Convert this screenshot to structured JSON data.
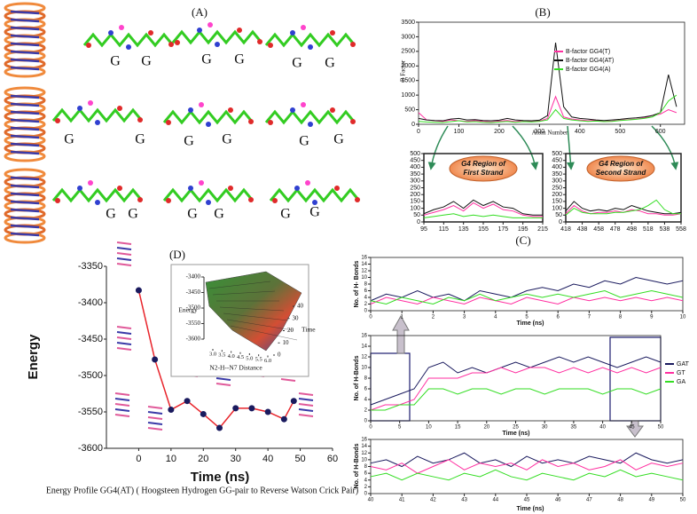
{
  "panel_labels": [
    "(A)",
    "(B)",
    "(C)",
    "(D)"
  ],
  "g_labels": [
    "G",
    "G",
    "G",
    "G",
    "G",
    "G",
    "G",
    "G",
    "G",
    "G",
    "G",
    "G",
    "G",
    "G",
    "G",
    "G",
    "G",
    "G"
  ],
  "caption": "Energy Profile GG4(AT) ( Hoogsteen Hydrogen GG-pair to Reverse Watson Crick Pair)",
  "chart_data": [
    {
      "type": "line",
      "xlabel": "Atom Number",
      "ylabel": "B Factor",
      "legend": "upper right",
      "x": [
        0,
        20,
        40,
        60,
        80,
        100,
        120,
        140,
        160,
        180,
        200,
        220,
        240,
        260,
        280,
        300,
        320,
        340,
        360,
        380,
        400,
        420,
        440,
        460,
        480,
        500,
        520,
        540,
        560,
        580,
        600,
        620,
        640
      ],
      "series": [
        {
          "name": "B-factor GG4(T)",
          "color": "#ff2fa0",
          "values": [
            400,
            150,
            120,
            100,
            150,
            120,
            100,
            130,
            100,
            80,
            110,
            130,
            90,
            120,
            100,
            110,
            200,
            950,
            250,
            180,
            150,
            120,
            140,
            100,
            110,
            140,
            160,
            180,
            220,
            300,
            350,
            500,
            400
          ]
        },
        {
          "name": "B-factor GG4(AT)",
          "color": "#111111",
          "values": [
            200,
            150,
            130,
            120,
            180,
            200,
            150,
            160,
            130,
            120,
            140,
            200,
            150,
            130,
            120,
            140,
            300,
            2800,
            600,
            250,
            200,
            180,
            150,
            130,
            150,
            170,
            200,
            220,
            250,
            300,
            400,
            1700,
            600
          ]
        },
        {
          "name": "B-factor GG4(A)",
          "color": "#33dd22",
          "values": [
            100,
            80,
            70,
            60,
            90,
            120,
            80,
            90,
            70,
            60,
            80,
            100,
            70,
            90,
            80,
            100,
            150,
            500,
            200,
            150,
            120,
            100,
            110,
            90,
            100,
            130,
            150,
            170,
            200,
            250,
            400,
            800,
            1000
          ]
        }
      ],
      "xlim": [
        0,
        660
      ],
      "ylim": [
        0,
        3500
      ],
      "xticks": [
        0,
        100,
        200,
        300,
        400,
        500,
        600
      ],
      "yticks": [
        0,
        500,
        1000,
        1500,
        2000,
        2500,
        3000,
        3500
      ]
    },
    {
      "type": "line",
      "annotation": [
        "G4 Region of",
        "First Strand"
      ],
      "x": [
        95,
        105,
        115,
        125,
        135,
        145,
        155,
        165,
        175,
        185,
        195,
        205,
        215
      ],
      "series": [
        {
          "color": "#ff2fa0",
          "values": [
            50,
            70,
            90,
            120,
            80,
            140,
            100,
            130,
            90,
            80,
            50,
            40,
            40
          ]
        },
        {
          "color": "#111111",
          "values": [
            60,
            90,
            110,
            150,
            100,
            160,
            120,
            150,
            110,
            100,
            60,
            50,
            50
          ]
        },
        {
          "color": "#33dd22",
          "values": [
            30,
            40,
            50,
            60,
            40,
            50,
            40,
            50,
            40,
            30,
            30,
            30,
            30
          ]
        }
      ],
      "xlim": [
        95,
        215
      ],
      "ylim": [
        0,
        500
      ],
      "xticks": [
        95,
        115,
        135,
        155,
        175,
        195,
        215
      ],
      "yticks": [
        0,
        50,
        100,
        150,
        200,
        250,
        300,
        350,
        400,
        450,
        500
      ]
    },
    {
      "type": "line",
      "annotation": [
        "G4 Region of",
        "Second Strand"
      ],
      "x": [
        418,
        428,
        438,
        448,
        458,
        468,
        478,
        488,
        498,
        508,
        518,
        528,
        538,
        548,
        558
      ],
      "series": [
        {
          "color": "#ff2fa0",
          "values": [
            60,
            120,
            80,
            60,
            70,
            70,
            80,
            70,
            90,
            80,
            60,
            60,
            50,
            50,
            60
          ]
        },
        {
          "color": "#111111",
          "values": [
            80,
            150,
            100,
            80,
            90,
            80,
            100,
            90,
            120,
            100,
            80,
            70,
            60,
            60,
            70
          ]
        },
        {
          "color": "#33dd22",
          "values": [
            50,
            100,
            70,
            60,
            60,
            60,
            70,
            70,
            80,
            90,
            120,
            160,
            90,
            60,
            60
          ]
        }
      ],
      "xlim": [
        418,
        558
      ],
      "ylim": [
        0,
        500
      ],
      "xticks": [
        418,
        438,
        458,
        478,
        498,
        518,
        538,
        558
      ],
      "yticks": [
        0,
        50,
        100,
        150,
        200,
        250,
        300,
        350,
        400,
        450,
        500
      ]
    },
    {
      "type": "line",
      "xlabel": "Time (ns)",
      "ylabel": "No. of H- Bonds",
      "x": [
        0,
        0.5,
        1,
        1.5,
        2,
        2.5,
        3,
        3.5,
        4,
        4.5,
        5,
        5.5,
        6,
        6.5,
        7,
        7.5,
        8,
        8.5,
        9,
        9.5,
        10
      ],
      "series": [
        {
          "color": "#1a1a5e",
          "values": [
            3,
            5,
            4,
            6,
            4,
            5,
            3,
            6,
            5,
            4,
            6,
            7,
            6,
            8,
            7,
            9,
            8,
            10,
            9,
            8,
            9
          ]
        },
        {
          "color": "#ff2fa0",
          "values": [
            2,
            4,
            3,
            2,
            4,
            3,
            2,
            4,
            3,
            2,
            4,
            3,
            2,
            4,
            3,
            4,
            3,
            4,
            3,
            4,
            3
          ]
        },
        {
          "color": "#33dd22",
          "values": [
            3,
            2,
            4,
            3,
            2,
            4,
            3,
            5,
            3,
            4,
            5,
            4,
            5,
            4,
            5,
            6,
            4,
            5,
            6,
            5,
            4
          ]
        }
      ],
      "xlim": [
        0,
        10
      ],
      "ylim": [
        0,
        16
      ],
      "xticks": [
        0,
        1,
        2,
        3,
        4,
        5,
        6,
        7,
        8,
        9,
        10
      ],
      "yticks": [
        0,
        2,
        4,
        6,
        8,
        10,
        12,
        14,
        16
      ]
    },
    {
      "type": "line",
      "xlabel": "Time (ns)",
      "ylabel": "No. of H-Bonds",
      "legend": "right",
      "x": [
        0,
        2.5,
        5,
        7.5,
        10,
        12.5,
        15,
        17.5,
        20,
        22.5,
        25,
        27.5,
        30,
        32.5,
        35,
        37.5,
        40,
        42.5,
        45,
        47.5,
        50
      ],
      "series": [
        {
          "name": "GAT",
          "color": "#1a1a5e",
          "values": [
            3,
            4,
            5,
            6,
            10,
            11,
            9,
            10,
            9,
            10,
            11,
            10,
            11,
            12,
            11,
            12,
            11,
            10,
            11,
            12,
            11
          ]
        },
        {
          "name": "GT",
          "color": "#ff2fa0",
          "values": [
            2,
            3,
            3,
            4,
            8,
            8,
            8,
            9,
            9,
            10,
            9,
            10,
            10,
            9,
            10,
            9,
            10,
            9,
            10,
            9,
            10
          ]
        },
        {
          "name": "GA",
          "color": "#33dd22",
          "values": [
            2,
            2,
            3,
            3,
            6,
            6,
            5,
            6,
            6,
            5,
            6,
            6,
            5,
            6,
            6,
            6,
            5,
            6,
            6,
            5,
            6
          ]
        }
      ],
      "xlim": [
        0,
        50
      ],
      "ylim": [
        0,
        16
      ],
      "xticks": [
        0,
        5,
        10,
        15,
        20,
        25,
        30,
        35,
        40,
        45,
        50
      ],
      "yticks": [
        0,
        2,
        4,
        6,
        8,
        10,
        12,
        14,
        16
      ]
    },
    {
      "type": "line",
      "xlabel": "Time (ns)",
      "ylabel": "No. of H-Bonds",
      "x": [
        40,
        40.5,
        41,
        41.5,
        42,
        42.5,
        43,
        43.5,
        44,
        44.5,
        45,
        45.5,
        46,
        46.5,
        47,
        47.5,
        48,
        48.5,
        49,
        49.5,
        50
      ],
      "series": [
        {
          "color": "#1a1a5e",
          "values": [
            9,
            10,
            8,
            11,
            9,
            10,
            12,
            9,
            10,
            8,
            11,
            9,
            10,
            9,
            11,
            10,
            9,
            12,
            10,
            9,
            10
          ]
        },
        {
          "color": "#ff2fa0",
          "values": [
            8,
            7,
            9,
            6,
            8,
            10,
            7,
            9,
            8,
            9,
            7,
            10,
            8,
            9,
            7,
            8,
            10,
            7,
            9,
            8,
            9
          ]
        },
        {
          "color": "#33dd22",
          "values": [
            5,
            6,
            4,
            6,
            5,
            4,
            6,
            5,
            7,
            5,
            4,
            6,
            5,
            4,
            6,
            5,
            7,
            5,
            6,
            5,
            4
          ]
        }
      ],
      "xlim": [
        40,
        50
      ],
      "ylim": [
        0,
        16
      ],
      "xticks": [
        40,
        41,
        42,
        43,
        44,
        45,
        46,
        47,
        48,
        49,
        50
      ],
      "yticks": [
        0,
        2,
        4,
        6,
        8,
        10,
        12,
        14,
        16
      ]
    },
    {
      "type": "line",
      "xlabel": "Time (ns)",
      "ylabel": "Energy",
      "markers": true,
      "x": [
        0,
        5,
        10,
        15,
        20,
        25,
        30,
        35,
        40,
        45,
        48
      ],
      "series": [
        {
          "color": "#e8242b",
          "values": [
            -3383,
            -3478,
            -3547,
            -3535,
            -3553,
            -3572,
            -3545,
            -3545,
            -3550,
            -3560,
            -3535
          ]
        }
      ],
      "xlim": [
        -10,
        60
      ],
      "ylim": [
        -3600,
        -3350
      ],
      "xticks": [
        0,
        10,
        20,
        30,
        40,
        50,
        60
      ],
      "yticks": [
        -3600,
        -3550,
        -3500,
        -3450,
        -3400,
        -3350
      ]
    },
    {
      "type": "surface",
      "zlabel": "Energy",
      "xlabel": "N2-H--N7 Distance",
      "ylabel": "Time",
      "zlim": [
        -3600,
        -3400
      ],
      "zticks": [
        -3400,
        -3450,
        -3500,
        -3550,
        -3600
      ],
      "xlim": [
        3,
        6
      ],
      "xticks": [
        {
          "value": 3,
          "label": "3.0"
        },
        3.5,
        {
          "value": 4,
          "label": "4.0"
        },
        4.5,
        {
          "value": 5,
          "label": "5.0"
        },
        5.5,
        {
          "value": 6,
          "label": "6.0"
        }
      ],
      "ylim": [
        0,
        40
      ],
      "yticks": [
        0,
        10,
        20,
        30,
        40
      ]
    }
  ]
}
